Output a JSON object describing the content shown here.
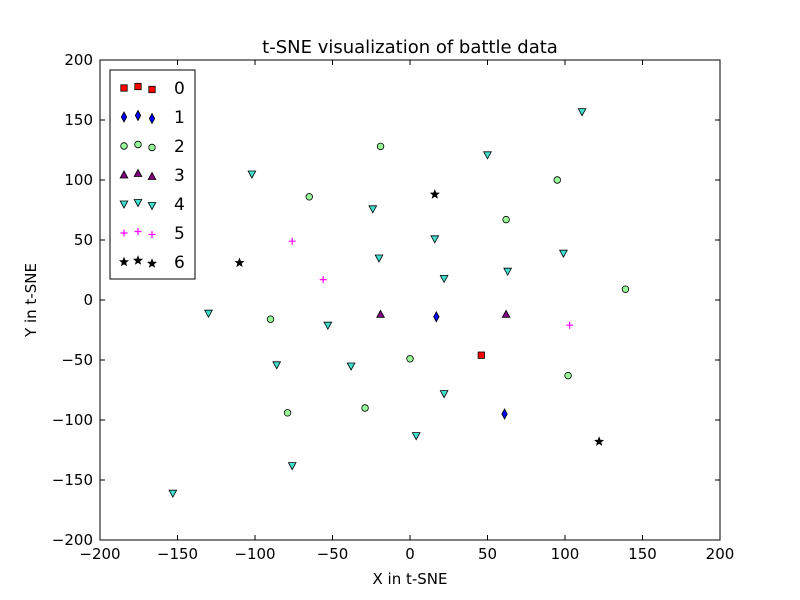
{
  "chart_data": {
    "type": "scatter",
    "title": "t-SNE visualization of battle data",
    "xlabel": "X in t-SNE",
    "ylabel": "Y in t-SNE",
    "xlim": [
      -200,
      200
    ],
    "ylim": [
      -200,
      200
    ],
    "xticks": [
      -200,
      -150,
      -100,
      -50,
      0,
      50,
      100,
      150,
      200
    ],
    "yticks": [
      -200,
      -150,
      -100,
      -50,
      0,
      50,
      100,
      150,
      200
    ],
    "grid": false,
    "legend_position": "top-left",
    "series": [
      {
        "name": "0",
        "marker": "square",
        "color": "#ff0000",
        "points": [
          [
            46,
            -46
          ]
        ]
      },
      {
        "name": "1",
        "marker": "thin-diamond",
        "color": "#0000ff",
        "points": [
          [
            17,
            -14
          ],
          [
            61,
            -95
          ]
        ]
      },
      {
        "name": "2",
        "marker": "circle",
        "color": "#98fb98",
        "points": [
          [
            -19,
            128
          ],
          [
            -65,
            86
          ],
          [
            95,
            100
          ],
          [
            62,
            67
          ],
          [
            139,
            9
          ],
          [
            -90,
            -16
          ],
          [
            0,
            -49
          ],
          [
            102,
            -63
          ],
          [
            -29,
            -90
          ],
          [
            -79,
            -94
          ]
        ]
      },
      {
        "name": "3",
        "marker": "triangle-up",
        "color": "#800080",
        "points": [
          [
            -19,
            -12
          ],
          [
            62,
            -12
          ]
        ]
      },
      {
        "name": "4",
        "marker": "triangle-down",
        "color": "#40e0d0",
        "points": [
          [
            111,
            157
          ],
          [
            50,
            121
          ],
          [
            -102,
            105
          ],
          [
            -24,
            76
          ],
          [
            16,
            51
          ],
          [
            99,
            39
          ],
          [
            -20,
            35
          ],
          [
            22,
            18
          ],
          [
            63,
            24
          ],
          [
            -130,
            -11
          ],
          [
            -53,
            -21
          ],
          [
            -86,
            -54
          ],
          [
            -38,
            -55
          ],
          [
            22,
            -78
          ],
          [
            4,
            -113
          ],
          [
            -76,
            -138
          ],
          [
            -153,
            -161
          ]
        ]
      },
      {
        "name": "5",
        "marker": "plus",
        "color": "#ff00ff",
        "points": [
          [
            -76,
            49
          ],
          [
            -56,
            17
          ],
          [
            103,
            -21
          ]
        ]
      },
      {
        "name": "6",
        "marker": "star",
        "color": "#000000",
        "points": [
          [
            16,
            88
          ],
          [
            -110,
            31
          ],
          [
            122,
            -118
          ]
        ]
      }
    ]
  }
}
